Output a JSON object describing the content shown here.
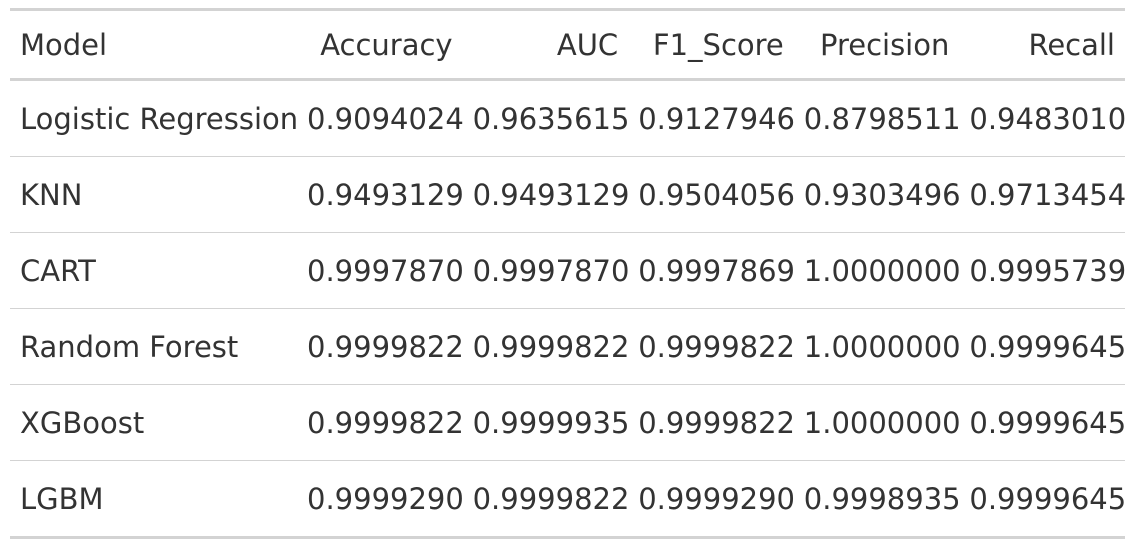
{
  "table": {
    "headers": [
      "Model",
      "Accuracy",
      "AUC",
      "F1_Score",
      "Precision",
      "Recall"
    ],
    "rows": [
      [
        "Logistic Regression",
        "0.9094024",
        "0.9635615",
        "0.9127946",
        "0.8798511",
        "0.9483010"
      ],
      [
        "KNN",
        "0.9493129",
        "0.9493129",
        "0.9504056",
        "0.9303496",
        "0.9713454"
      ],
      [
        "CART",
        "0.9997870",
        "0.9997870",
        "0.9997869",
        "1.0000000",
        "0.9995739"
      ],
      [
        "Random Forest",
        "0.9999822",
        "0.9999822",
        "0.9999822",
        "1.0000000",
        "0.9999645"
      ],
      [
        "XGBoost",
        "0.9999822",
        "0.9999935",
        "0.9999822",
        "1.0000000",
        "0.9999645"
      ],
      [
        "LGBM",
        "0.9999290",
        "0.9999822",
        "0.9999290",
        "0.9998935",
        "0.9999645"
      ]
    ]
  }
}
